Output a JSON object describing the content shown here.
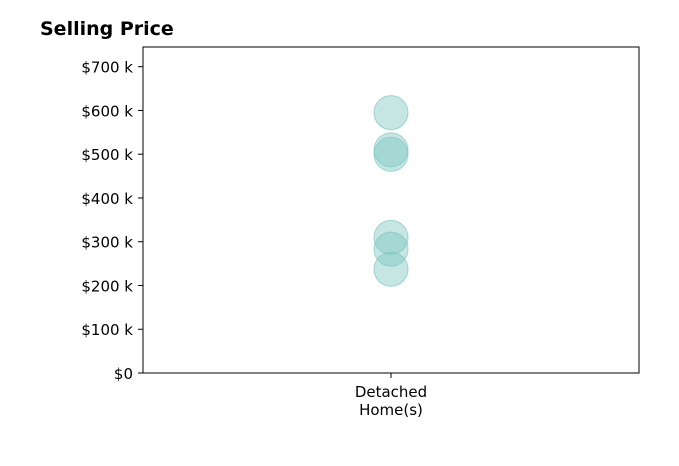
{
  "chart_data": {
    "type": "scatter",
    "title": "Selling Price",
    "xlabel": "",
    "ylabel": "",
    "categories": [
      "Detached\nHome(s)"
    ],
    "ylim": [
      0,
      745000
    ],
    "yticks": [
      0,
      100000,
      200000,
      300000,
      400000,
      500000,
      600000,
      700000
    ],
    "ytick_labels": [
      "$0",
      "$100 k",
      "$200 k",
      "$300 k",
      "$400 k",
      "$500 k",
      "$600 k",
      "$700 k"
    ],
    "grid": false,
    "legend": "none",
    "marker_color": "#7ec8c0",
    "marker_alpha": 0.45,
    "series": [
      {
        "points": [
          {
            "category": 0,
            "y": 595000
          },
          {
            "category": 0,
            "y": 510000
          },
          {
            "category": 0,
            "y": 500000
          },
          {
            "category": 0,
            "y": 310000
          },
          {
            "category": 0,
            "y": 283000
          },
          {
            "category": 0,
            "y": 237000
          }
        ]
      }
    ]
  }
}
